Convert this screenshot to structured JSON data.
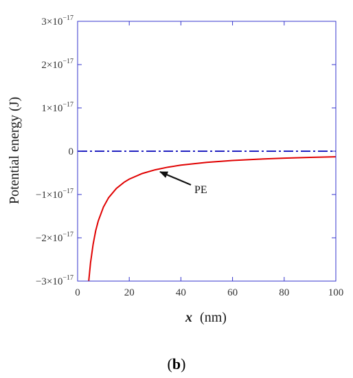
{
  "chart_data": {
    "type": "line",
    "xlabel_var": "x",
    "xlabel_unit": "(nm)",
    "ylabel": "Potential energy (J)",
    "xlim": [
      0,
      100
    ],
    "ylim": [
      -3e-17,
      3e-17
    ],
    "x_ticks": [
      0,
      20,
      40,
      60,
      80,
      100
    ],
    "x_tick_labels": [
      "0",
      "20",
      "40",
      "60",
      "80",
      "100"
    ],
    "y_ticks": [
      {
        "value": 3e-17,
        "mantissa": "3×10",
        "exponent": "−17"
      },
      {
        "value": 2e-17,
        "mantissa": "2×10",
        "exponent": "−17"
      },
      {
        "value": 1e-17,
        "mantissa": "1×10",
        "exponent": "−17"
      },
      {
        "value": 0,
        "mantissa": "0",
        "exponent": ""
      },
      {
        "value": -1e-17,
        "mantissa": "−1×10",
        "exponent": "−17"
      },
      {
        "value": -2e-17,
        "mantissa": "−2×10",
        "exponent": "−17"
      },
      {
        "value": -3e-17,
        "mantissa": "−3×10",
        "exponent": "−17"
      }
    ],
    "grid": false,
    "series": [
      {
        "style": "solid",
        "color": "#e00000",
        "x": [
          4.3,
          5,
          6,
          7,
          8,
          10,
          12,
          15,
          18,
          20,
          25,
          30,
          35,
          40,
          50,
          60,
          70,
          80,
          90,
          100
        ],
        "y": [
          -3e-17,
          -2.58e-17,
          -2.15e-17,
          -1.84e-17,
          -1.61e-17,
          -1.29e-17,
          -1.075e-17,
          -8.6e-18,
          -7.17e-18,
          -6.45e-18,
          -5.16e-18,
          -4.3e-18,
          -3.69e-18,
          -3.23e-18,
          -2.58e-18,
          -2.15e-18,
          -1.84e-18,
          -1.61e-18,
          -1.43e-18,
          -1.29e-18
        ]
      },
      {
        "style": "dash-dot",
        "color": "#2020c0",
        "x": [
          0,
          100
        ],
        "y": [
          0,
          0
        ]
      }
    ],
    "annotations": [
      {
        "text": "PE",
        "points_to_x": 30,
        "points_to_y": -4.3e-18
      }
    ]
  },
  "panel_label": "b"
}
